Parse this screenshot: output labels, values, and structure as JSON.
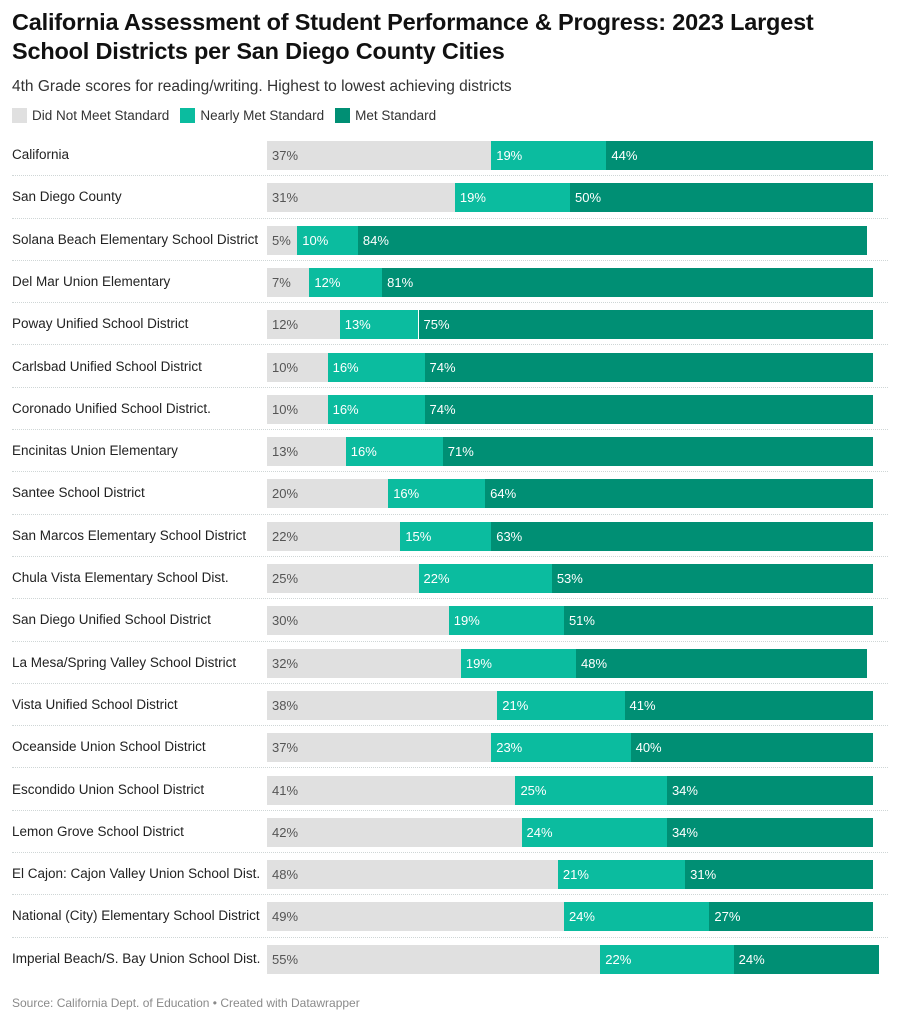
{
  "header": {
    "title": "California Assessment of Student Performance & Progress: 2023 Largest School Districts per San Diego County Cities",
    "subtitle": "4th Grade scores for reading/writing. Highest to lowest achieving districts"
  },
  "footer": {
    "source": "Source: California Dept. of Education • Created with Datawrapper"
  },
  "chart_data": {
    "type": "bar",
    "orientation": "horizontal",
    "stacked": true,
    "title": "California Assessment of Student Performance & Progress: 2023 Largest School Districts per San Diego County Cities",
    "subtitle": "4th Grade scores for reading/writing. Highest to lowest achieving districts",
    "xlabel": "",
    "ylabel": "",
    "value_suffix": "%",
    "xlim": [
      0,
      100
    ],
    "grid": false,
    "legend_position": "top-left",
    "categories": [
      "California",
      "San Diego County",
      "Solana Beach Elementary School District",
      "Del Mar Union Elementary",
      "Poway Unified School District",
      "Carlsbad Unified School District",
      "Coronado Unified School District.",
      "Encinitas Union Elementary",
      "Santee School District",
      "San Marcos Elementary School District",
      "Chula Vista Elementary School Dist.",
      "San Diego Unified School District",
      "La Mesa/Spring Valley School District",
      "Vista Unified School District",
      "Oceanside Union School District",
      "Escondido Union School District",
      "Lemon Grove School District",
      "El Cajon: Cajon Valley Union School Dist.",
      "National (City) Elementary School District",
      "Imperial Beach/S. Bay Union School Dist."
    ],
    "series": [
      {
        "name": "Did Not Meet Standard",
        "color": "#e0e0e0",
        "values": [
          37,
          31,
          5,
          7,
          12,
          10,
          10,
          13,
          20,
          22,
          25,
          30,
          32,
          38,
          37,
          41,
          42,
          48,
          49,
          55
        ]
      },
      {
        "name": "Nearly Met Standard",
        "color": "#0bbc9f",
        "values": [
          19,
          19,
          10,
          12,
          13,
          16,
          16,
          16,
          16,
          15,
          22,
          19,
          19,
          21,
          23,
          25,
          24,
          21,
          24,
          22
        ]
      },
      {
        "name": "Met Standard",
        "color": "#008f74",
        "values": [
          44,
          50,
          84,
          81,
          75,
          74,
          74,
          71,
          64,
          63,
          53,
          51,
          48,
          41,
          40,
          34,
          34,
          31,
          27,
          24
        ]
      }
    ]
  }
}
